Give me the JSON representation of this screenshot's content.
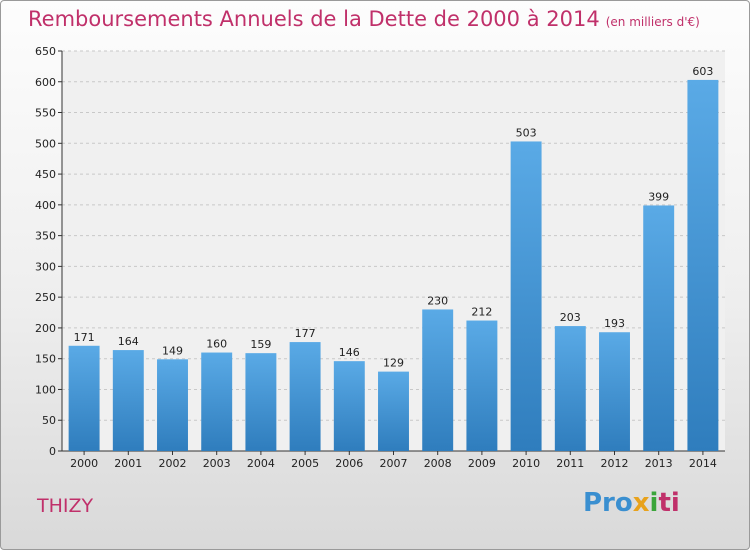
{
  "title": "Remboursements Annuels de la Dette de 2000 à 2014",
  "subtitle": "(en milliers d'€)",
  "commune": "THIZY",
  "logo": {
    "part1": "Pro",
    "part2": "x",
    "part3": "i",
    "part4": "ti"
  },
  "colors": {
    "bar_light": "#5aaae6",
    "bar_dark": "#2f7dbd",
    "title": "#c0306a"
  },
  "chart_data": {
    "type": "bar",
    "categories": [
      "2000",
      "2001",
      "2002",
      "2003",
      "2004",
      "2005",
      "2006",
      "2007",
      "2008",
      "2009",
      "2010",
      "2011",
      "2012",
      "2013",
      "2014"
    ],
    "values": [
      171,
      164,
      149,
      160,
      159,
      177,
      146,
      129,
      230,
      212,
      503,
      203,
      193,
      399,
      603
    ],
    "title": "Remboursements Annuels de la Dette de 2000 à 2014",
    "subtitle": "(en milliers d'€)",
    "ylim": [
      0,
      650
    ],
    "yticks": [
      0,
      50,
      100,
      150,
      200,
      250,
      300,
      350,
      400,
      450,
      500,
      550,
      600,
      650
    ],
    "grid": true,
    "legend": "none"
  }
}
